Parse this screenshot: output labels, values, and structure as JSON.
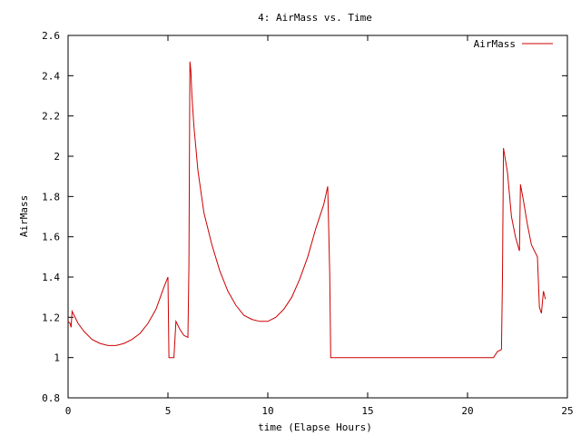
{
  "chart_data": {
    "type": "line",
    "title": "4: AirMass vs. Time",
    "xlabel": "time (Elapse Hours)",
    "ylabel": "AirMass",
    "xlim": [
      0,
      25
    ],
    "ylim": [
      0.8,
      2.6
    ],
    "xticks": [
      0,
      5,
      10,
      15,
      20,
      25
    ],
    "xtick_labels": [
      "0",
      "5",
      "10",
      "15",
      "20",
      "25"
    ],
    "yticks": [
      0.8,
      1,
      1.2,
      1.4,
      1.6,
      1.8,
      2,
      2.2,
      2.4,
      2.6
    ],
    "ytick_labels": [
      "0.8",
      "1",
      "1.2",
      "1.4",
      "1.6",
      "1.8",
      "2",
      "2.2",
      "2.4",
      "2.6"
    ],
    "grid": false,
    "legend": "top-right",
    "series_color": "#cc0000",
    "series": [
      {
        "name": "AirMass",
        "x": [
          0.0,
          0.1,
          0.15,
          0.2,
          0.3,
          0.5,
          0.8,
          1.2,
          1.6,
          2.0,
          2.4,
          2.8,
          3.2,
          3.6,
          4.0,
          4.4,
          4.8,
          5.0,
          5.05,
          5.15,
          5.3,
          5.4,
          5.6,
          5.8,
          6.0,
          6.05,
          6.1,
          6.15,
          6.2,
          6.3,
          6.5,
          6.8,
          7.2,
          7.6,
          8.0,
          8.4,
          8.8,
          9.2,
          9.6,
          10.0,
          10.4,
          10.8,
          11.2,
          11.6,
          12.0,
          12.4,
          12.8,
          13.0,
          13.1,
          13.15,
          13.25,
          13.3,
          15.0,
          20.0,
          21.3,
          21.5,
          21.7,
          21.75,
          21.8,
          22.0,
          22.2,
          22.4,
          22.6,
          22.65,
          22.8,
          23.0,
          23.2,
          23.5,
          23.6,
          23.7,
          23.8,
          23.9
        ],
        "values": [
          1.18,
          1.17,
          1.15,
          1.23,
          1.21,
          1.17,
          1.13,
          1.09,
          1.07,
          1.06,
          1.06,
          1.07,
          1.09,
          1.12,
          1.17,
          1.24,
          1.35,
          1.4,
          1.0,
          1.0,
          1.0,
          1.18,
          1.14,
          1.11,
          1.1,
          1.45,
          2.47,
          2.42,
          2.3,
          2.15,
          1.93,
          1.72,
          1.56,
          1.43,
          1.33,
          1.26,
          1.21,
          1.19,
          1.18,
          1.18,
          1.2,
          1.24,
          1.3,
          1.39,
          1.5,
          1.64,
          1.76,
          1.85,
          1.42,
          1.0,
          1.0,
          1.0,
          1.0,
          1.0,
          1.0,
          1.03,
          1.04,
          1.4,
          2.04,
          1.92,
          1.7,
          1.6,
          1.53,
          1.86,
          1.78,
          1.66,
          1.56,
          1.5,
          1.25,
          1.22,
          1.33,
          1.29
        ]
      }
    ]
  }
}
